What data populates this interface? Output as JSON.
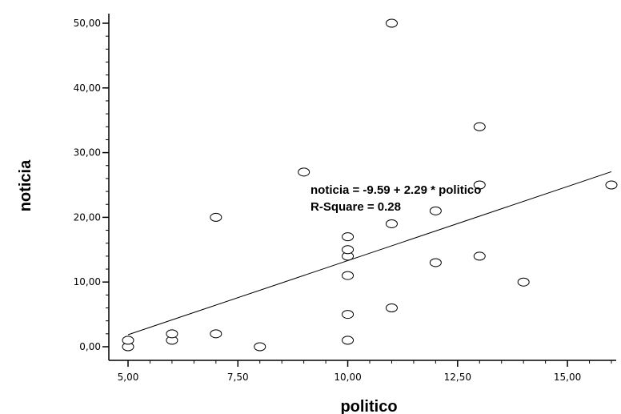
{
  "chart_data": {
    "type": "scatter",
    "xlabel": "politico",
    "ylabel": "noticia",
    "xlim": [
      5,
      16
    ],
    "ylim": [
      0,
      50
    ],
    "x_ticks": [
      5,
      7.5,
      10,
      12.5,
      15
    ],
    "x_tick_labels": [
      "5,00",
      "7,50",
      "10,00",
      "12,50",
      "15,00"
    ],
    "y_ticks": [
      0,
      10,
      20,
      30,
      40,
      50
    ],
    "y_tick_labels": [
      "0,00",
      "10,00",
      "20,00",
      "30,00",
      "40,00",
      "50,00"
    ],
    "grid": false,
    "points": [
      {
        "x": 5,
        "y": 0
      },
      {
        "x": 5,
        "y": 1
      },
      {
        "x": 6,
        "y": 1
      },
      {
        "x": 6,
        "y": 2
      },
      {
        "x": 7,
        "y": 2
      },
      {
        "x": 7,
        "y": 20
      },
      {
        "x": 8,
        "y": 0
      },
      {
        "x": 9,
        "y": 27
      },
      {
        "x": 10,
        "y": 1
      },
      {
        "x": 10,
        "y": 5
      },
      {
        "x": 10,
        "y": 11
      },
      {
        "x": 10,
        "y": 14
      },
      {
        "x": 10,
        "y": 15
      },
      {
        "x": 10,
        "y": 17
      },
      {
        "x": 11,
        "y": 6
      },
      {
        "x": 11,
        "y": 19
      },
      {
        "x": 11,
        "y": 50
      },
      {
        "x": 12,
        "y": 13
      },
      {
        "x": 12,
        "y": 21
      },
      {
        "x": 13,
        "y": 14
      },
      {
        "x": 13,
        "y": 25
      },
      {
        "x": 13,
        "y": 34
      },
      {
        "x": 14,
        "y": 10
      },
      {
        "x": 16,
        "y": 25
      }
    ],
    "fit_line": {
      "intercept": -9.59,
      "slope": 2.29,
      "x_start": 5,
      "x_end": 16
    },
    "annotations": {
      "equation": "noticia = -9.59 + 2.29 * politico",
      "r_square": "R-Square = 0.28"
    }
  }
}
